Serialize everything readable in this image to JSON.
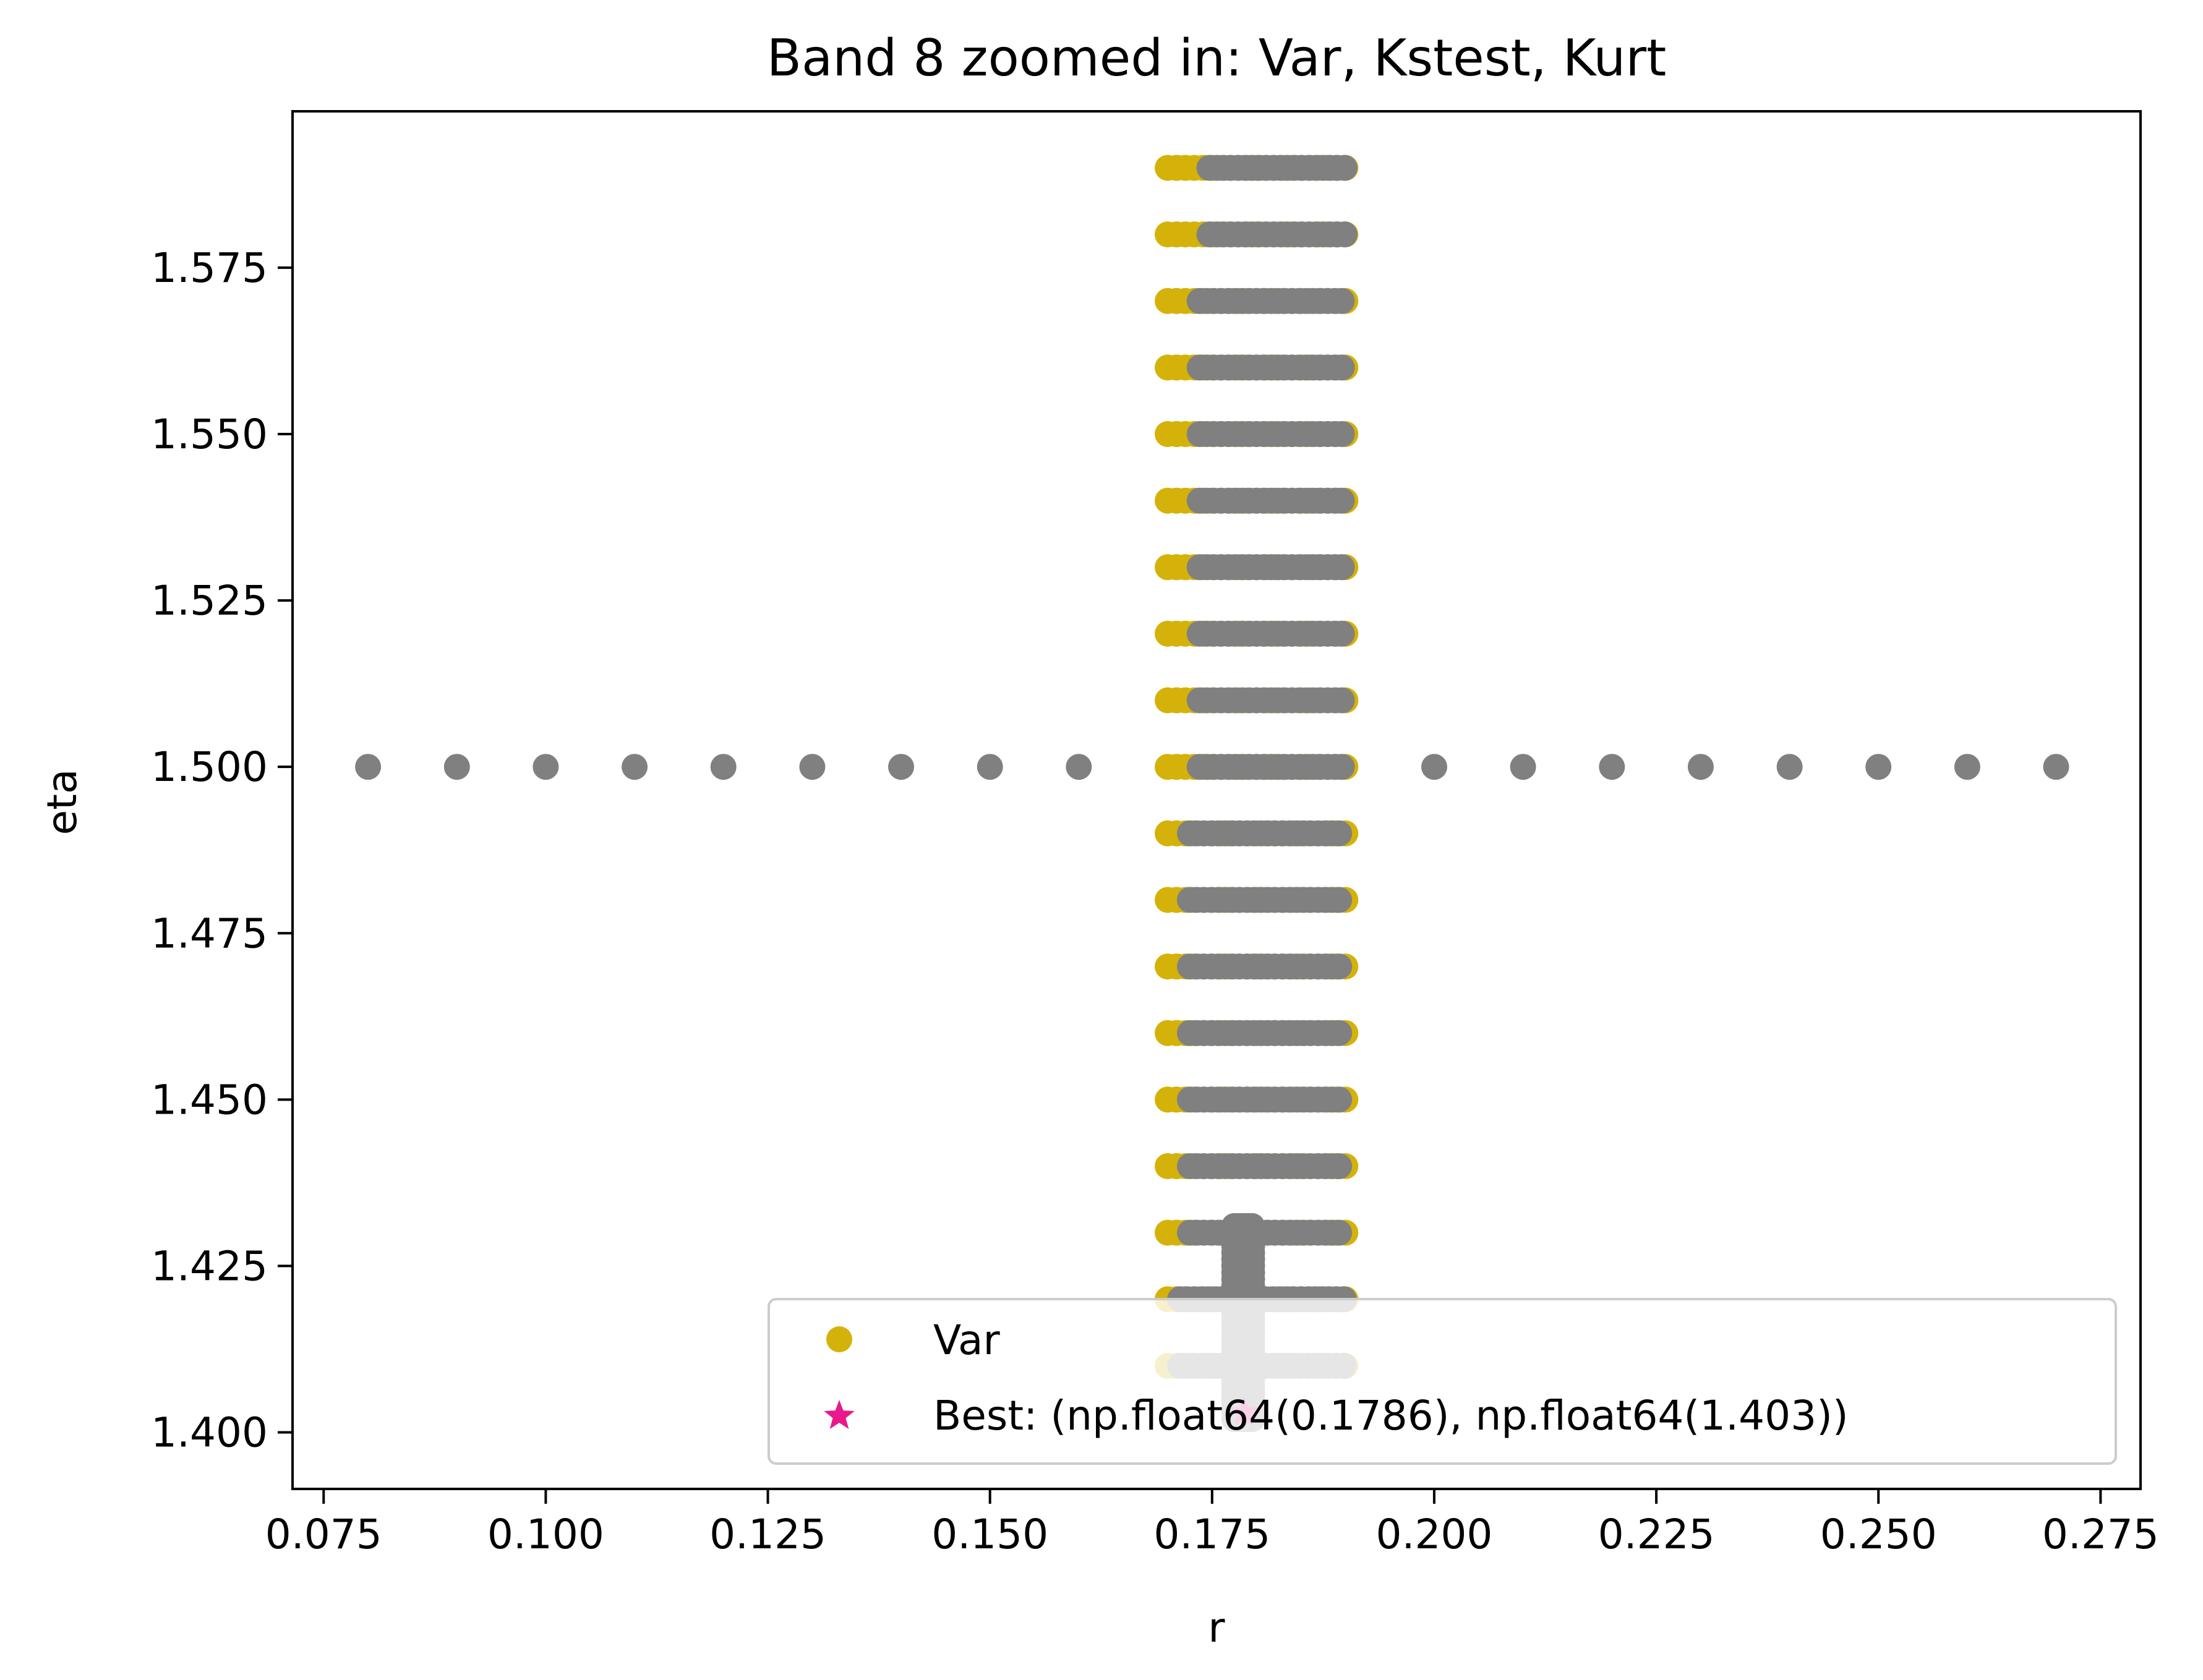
{
  "chart_data": {
    "type": "scatter",
    "title": "Band 8 zoomed in: Var, Kstest, Kurt",
    "xlabel": "r",
    "ylabel": "eta",
    "xlim": [
      0.0715,
      0.2795
    ],
    "ylim": [
      1.3915,
      1.5985
    ],
    "xticks": [
      "0.075",
      "0.100",
      "0.125",
      "0.150",
      "0.175",
      "0.200",
      "0.225",
      "0.250",
      "0.275"
    ],
    "xtick_values": [
      0.075,
      0.1,
      0.125,
      0.15,
      0.175,
      0.2,
      0.225,
      0.25,
      0.275
    ],
    "yticks": [
      "1.400",
      "1.425",
      "1.450",
      "1.475",
      "1.500",
      "1.525",
      "1.550",
      "1.575"
    ],
    "ytick_values": [
      1.4,
      1.425,
      1.45,
      1.475,
      1.5,
      1.525,
      1.55,
      1.575
    ],
    "grid": false,
    "legend_position": "lower-right",
    "legend": [
      {
        "label": "Var",
        "marker": "circle",
        "color": "#d4b20a"
      },
      {
        "label": "Best: (np.float64(0.1786), np.float64(1.403))",
        "marker": "star",
        "color": "#e8198b"
      }
    ],
    "series": [
      {
        "name": "Var",
        "color": "#d4b20a",
        "description_of_points": "grid of rows",
        "rows": {
          "eta_start": 1.41,
          "eta_end": 1.59,
          "eta_step": 0.01,
          "r_start": 0.17,
          "r_end": 0.19,
          "r_step": 0.001
        }
      },
      {
        "color": "#808080",
        "rows": [
          {
            "eta": 1.59,
            "r_start": 0.1747,
            "r_end": 0.19
          },
          {
            "eta": 1.58,
            "r_start": 0.1747,
            "r_end": 0.19
          },
          {
            "eta": 1.57,
            "r_start": 0.1736,
            "r_end": 0.19
          },
          {
            "eta": 1.56,
            "r_start": 0.1736,
            "r_end": 0.19
          },
          {
            "eta": 1.55,
            "r_start": 0.1736,
            "r_end": 0.19
          },
          {
            "eta": 1.54,
            "r_start": 0.1736,
            "r_end": 0.19
          },
          {
            "eta": 1.53,
            "r_start": 0.1736,
            "r_end": 0.19
          },
          {
            "eta": 1.52,
            "r_start": 0.1736,
            "r_end": 0.19
          },
          {
            "eta": 1.51,
            "r_start": 0.1736,
            "r_end": 0.19
          },
          {
            "eta": 1.5,
            "r_start": 0.1736,
            "r_end": 0.19
          },
          {
            "eta": 1.49,
            "r_start": 0.1725,
            "r_end": 0.19
          },
          {
            "eta": 1.48,
            "r_start": 0.1725,
            "r_end": 0.19
          },
          {
            "eta": 1.47,
            "r_start": 0.1725,
            "r_end": 0.19
          },
          {
            "eta": 1.46,
            "r_start": 0.1725,
            "r_end": 0.19
          },
          {
            "eta": 1.45,
            "r_start": 0.1725,
            "r_end": 0.19
          },
          {
            "eta": 1.44,
            "r_start": 0.1725,
            "r_end": 0.19
          },
          {
            "eta": 1.43,
            "r_start": 0.1725,
            "r_end": 0.19
          },
          {
            "eta": 1.42,
            "r_start": 0.1714,
            "r_end": 0.19
          },
          {
            "eta": 1.41,
            "r_start": 0.1714,
            "r_end": 0.19
          }
        ],
        "extra_points": [
          {
            "r": 0.08,
            "eta": 1.5
          },
          {
            "r": 0.09,
            "eta": 1.5
          },
          {
            "r": 0.1,
            "eta": 1.5
          },
          {
            "r": 0.11,
            "eta": 1.5
          },
          {
            "r": 0.12,
            "eta": 1.5
          },
          {
            "r": 0.13,
            "eta": 1.5
          },
          {
            "r": 0.14,
            "eta": 1.5
          },
          {
            "r": 0.15,
            "eta": 1.5
          },
          {
            "r": 0.16,
            "eta": 1.5
          },
          {
            "r": 0.2,
            "eta": 1.5
          },
          {
            "r": 0.21,
            "eta": 1.5
          },
          {
            "r": 0.22,
            "eta": 1.5
          },
          {
            "r": 0.23,
            "eta": 1.5
          },
          {
            "r": 0.24,
            "eta": 1.5
          },
          {
            "r": 0.25,
            "eta": 1.5
          },
          {
            "r": 0.26,
            "eta": 1.5
          },
          {
            "r": 0.27,
            "eta": 1.5
          }
        ],
        "dense_column": {
          "r_start": 0.1775,
          "r_end": 0.1797,
          "eta_start": 1.402,
          "eta_end": 1.431
        }
      }
    ],
    "best": {
      "r": 0.1786,
      "eta": 1.403,
      "color": "#e8198b"
    }
  }
}
